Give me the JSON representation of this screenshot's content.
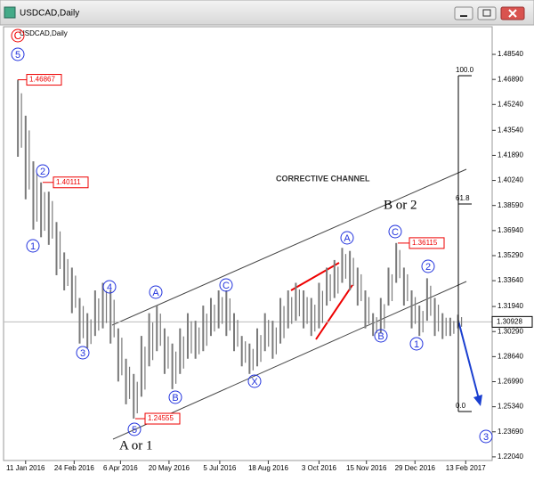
{
  "window": {
    "title": "USDCAD,Daily"
  },
  "chart_data": {
    "type": "ohlc",
    "title": "USDCAD,Daily",
    "x": [
      "2016-01-04",
      "2016-01-11",
      "2016-01-18",
      "2016-01-25",
      "2016-02-01",
      "2016-02-08",
      "2016-02-15",
      "2016-02-22",
      "2016-02-29",
      "2016-03-07",
      "2016-03-14",
      "2016-03-21",
      "2016-03-28",
      "2016-04-04",
      "2016-04-11",
      "2016-04-18",
      "2016-04-25",
      "2016-05-02",
      "2016-05-09",
      "2016-05-16",
      "2016-05-23",
      "2016-05-30",
      "2016-06-06",
      "2016-06-13",
      "2016-06-20",
      "2016-06-27",
      "2016-07-04",
      "2016-07-11",
      "2016-07-18",
      "2016-07-25",
      "2016-08-01",
      "2016-08-08",
      "2016-08-15",
      "2016-08-22",
      "2016-08-29",
      "2016-09-05",
      "2016-09-12",
      "2016-09-19",
      "2016-09-26",
      "2016-10-03",
      "2016-10-10",
      "2016-10-17",
      "2016-10-24",
      "2016-10-31",
      "2016-11-07",
      "2016-11-14",
      "2016-11-21",
      "2016-11-28",
      "2016-12-05",
      "2016-12-12",
      "2016-12-19",
      "2016-12-26",
      "2017-01-02",
      "2017-01-09",
      "2017-01-16",
      "2017-01-23",
      "2017-01-30",
      "2017-02-06"
    ],
    "high": [
      1.4687,
      1.445,
      1.415,
      1.4011,
      1.395,
      1.375,
      1.355,
      1.345,
      1.325,
      1.315,
      1.33,
      1.335,
      1.33,
      1.305,
      1.285,
      1.275,
      1.3,
      1.315,
      1.32,
      1.305,
      1.295,
      1.305,
      1.315,
      1.31,
      1.32,
      1.325,
      1.33,
      1.33,
      1.315,
      1.3,
      1.295,
      1.305,
      1.315,
      1.31,
      1.325,
      1.33,
      1.335,
      1.33,
      1.325,
      1.335,
      1.345,
      1.35,
      1.358,
      1.356,
      1.345,
      1.33,
      1.315,
      1.325,
      1.345,
      1.3612,
      1.345,
      1.33,
      1.32,
      1.338,
      1.325,
      1.315,
      1.312,
      1.314
    ],
    "low": [
      1.418,
      1.39,
      1.37,
      1.365,
      1.36,
      1.34,
      1.33,
      1.315,
      1.295,
      1.292,
      1.3,
      1.305,
      1.295,
      1.27,
      1.255,
      1.2456,
      1.26,
      1.28,
      1.29,
      1.275,
      1.265,
      1.275,
      1.285,
      1.285,
      1.29,
      1.3,
      1.305,
      1.3,
      1.29,
      1.28,
      1.275,
      1.28,
      1.29,
      1.285,
      1.295,
      1.305,
      1.31,
      1.305,
      1.3,
      1.305,
      1.32,
      1.325,
      1.335,
      1.33,
      1.32,
      1.305,
      1.3,
      1.302,
      1.32,
      1.335,
      1.32,
      1.305,
      1.3,
      1.31,
      1.3,
      1.298,
      1.3,
      1.305
    ],
    "color": "#7a7a7a",
    "last_price": 1.30928,
    "xlim": [
      "2015-12-22",
      "2017-03-09"
    ],
    "xticks": [
      {
        "value": "2016-01-11",
        "label": "11 Jan 2016"
      },
      {
        "value": "2016-02-24",
        "label": "24 Feb 2016"
      },
      {
        "value": "2016-04-06",
        "label": "6 Apr 2016"
      },
      {
        "value": "2016-05-20",
        "label": "20 May 2016"
      },
      {
        "value": "2016-07-05",
        "label": "5 Jul 2016"
      },
      {
        "value": "2016-08-18",
        "label": "18 Aug 2016"
      },
      {
        "value": "2016-10-03",
        "label": "3 Oct 2016"
      },
      {
        "value": "2016-11-15",
        "label": "15 Nov 2016"
      },
      {
        "value": "2016-12-29",
        "label": "29 Dec 2016"
      },
      {
        "value": "2017-02-13",
        "label": "13 Feb 2017"
      }
    ],
    "ylim": [
      1.218,
      1.5036
    ],
    "yticks": [
      {
        "value": 1.4854,
        "label": "1.48540"
      },
      {
        "value": 1.4689,
        "label": "1.46890"
      },
      {
        "value": 1.4524,
        "label": "1.45240"
      },
      {
        "value": 1.4354,
        "label": "1.43540"
      },
      {
        "value": 1.4189,
        "label": "1.41890"
      },
      {
        "value": 1.4024,
        "label": "1.40240"
      },
      {
        "value": 1.3859,
        "label": "1.38590"
      },
      {
        "value": 1.3694,
        "label": "1.36940"
      },
      {
        "value": 1.3529,
        "label": "1.35290"
      },
      {
        "value": 1.3364,
        "label": "1.33640"
      },
      {
        "value": 1.3194,
        "label": "1.31940"
      },
      {
        "value": 1.3029,
        "label": "1.30290"
      },
      {
        "value": 1.2864,
        "label": "1.28640"
      },
      {
        "value": 1.2699,
        "label": "1.26990"
      },
      {
        "value": 1.2534,
        "label": "1.25340"
      },
      {
        "value": 1.2369,
        "label": "1.23690"
      },
      {
        "value": 1.2204,
        "label": "1.22040"
      }
    ],
    "price_labels": [
      1.46867,
      1.40111,
      1.24555,
      1.36115
    ],
    "wave_labels": [
      "5",
      "2",
      "1",
      "4",
      "3",
      "5",
      "A",
      "B",
      "C",
      "X",
      "A",
      "B",
      "C",
      "1",
      "2",
      "3"
    ],
    "red_label": "C",
    "annotations": [
      "CORRECTIVE CHANNEL",
      "B or 2",
      "A or 1"
    ],
    "fib_levels": [
      {
        "value": 100,
        "label": "100.0"
      },
      {
        "value": 61.8,
        "label": "61.8"
      },
      {
        "value": 0,
        "label": "0.0"
      }
    ]
  }
}
